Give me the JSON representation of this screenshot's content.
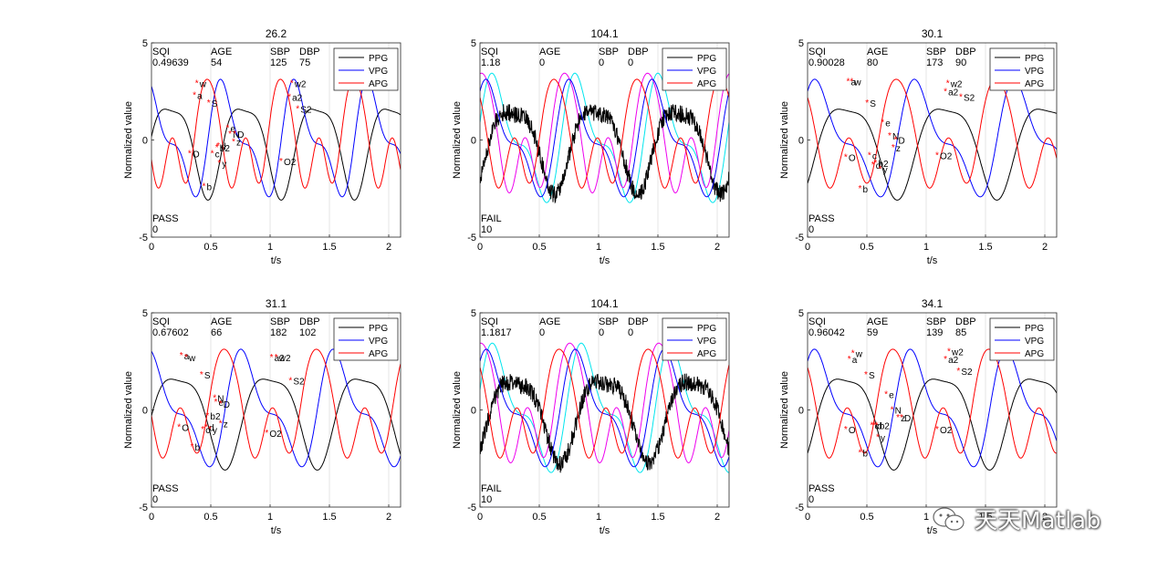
{
  "watermark": {
    "text": "天天Matlab",
    "icon": "wechat-icon"
  },
  "panel_annotation": {
    "status_lines": 2
  },
  "chart_data": [
    {
      "type": "line",
      "title": "26.2",
      "xlabel": "t/s",
      "ylabel": "Normalized value",
      "xlim": [
        0,
        2.1
      ],
      "ylim": [
        -5,
        5
      ],
      "xticks": [
        0,
        0.5,
        1,
        1.5,
        2
      ],
      "xtick_labels": [
        "0",
        "0.5",
        "1",
        "1.5",
        "2"
      ],
      "yticks": [
        -5,
        0,
        5
      ],
      "ytick_labels": [
        "-5",
        "0",
        "5"
      ],
      "info": {
        "headers": [
          "SQI",
          "AGE",
          "SBP",
          "DBP"
        ],
        "values": [
          "0.49639",
          "54",
          "125",
          "75"
        ]
      },
      "status": "PASS",
      "status_code": "0",
      "legend": [
        "PPG",
        "VPG",
        "APG"
      ],
      "legend_colors": [
        "#000000",
        "#0000ff",
        "#ff0000"
      ],
      "legend_position": "top-right",
      "noisy": false,
      "n_beats": 3.4,
      "markers": [
        {
          "label": "O",
          "x": 0.33,
          "y": -0.7
        },
        {
          "label": "w",
          "x": 0.39,
          "y": 2.9
        },
        {
          "label": "a",
          "x": 0.37,
          "y": 2.3
        },
        {
          "label": "S",
          "x": 0.49,
          "y": 1.9
        },
        {
          "label": "b",
          "x": 0.45,
          "y": -2.4
        },
        {
          "label": "c",
          "x": 0.52,
          "y": -0.7
        },
        {
          "label": "y",
          "x": 0.58,
          "y": -1.2
        },
        {
          "label": "b2",
          "x": 0.56,
          "y": -0.4
        },
        {
          "label": "d",
          "x": 0.57,
          "y": -0.3
        },
        {
          "label": "e",
          "x": 0.65,
          "y": 0.6
        },
        {
          "label": "N",
          "x": 0.67,
          "y": 0.3
        },
        {
          "label": "D",
          "x": 0.71,
          "y": 0.3
        },
        {
          "label": "z",
          "x": 0.7,
          "y": -0.1
        },
        {
          "label": "O2",
          "x": 1.1,
          "y": -1.1
        },
        {
          "label": "w2",
          "x": 1.19,
          "y": 2.9
        },
        {
          "label": "a2",
          "x": 1.17,
          "y": 2.2
        },
        {
          "label": "S2",
          "x": 1.24,
          "y": 1.6
        }
      ]
    },
    {
      "type": "line",
      "title": "104.1",
      "xlabel": "t/s",
      "ylabel": "Normalized value",
      "xlim": [
        0,
        2.1
      ],
      "ylim": [
        -5,
        5
      ],
      "xticks": [
        0,
        0.5,
        1,
        1.5,
        2
      ],
      "xtick_labels": [
        "0",
        "0.5",
        "1",
        "1.5",
        "2"
      ],
      "yticks": [
        -5,
        0,
        5
      ],
      "ytick_labels": [
        "-5",
        "0",
        "5"
      ],
      "info": {
        "headers": [
          "SQI",
          "AGE",
          "SBP",
          "DBP"
        ],
        "values": [
          "1.18",
          "0",
          "0",
          "0"
        ]
      },
      "status": "FAIL",
      "status_code": "10",
      "legend": [
        "PPG",
        "VPG",
        "APG"
      ],
      "legend_colors": [
        "#000000",
        "#0000ff",
        "#ff0000"
      ],
      "legend_position": "top-right",
      "noisy": true,
      "n_beats": 3.0,
      "markers": []
    },
    {
      "type": "line",
      "title": "30.1",
      "xlabel": "t/s",
      "ylabel": "Normalized value",
      "xlim": [
        0,
        2.1
      ],
      "ylim": [
        -5,
        5
      ],
      "xticks": [
        0,
        0.5,
        1,
        1.5,
        2
      ],
      "xtick_labels": [
        "0",
        "0.5",
        "1",
        "1.5",
        "2"
      ],
      "yticks": [
        -5,
        0,
        5
      ],
      "ytick_labels": [
        "-5",
        "0",
        "5"
      ],
      "info": {
        "headers": [
          "SQI",
          "AGE",
          "SBP",
          "DBP"
        ],
        "values": [
          "0.90028",
          "80",
          "173",
          "90"
        ]
      },
      "status": "PASS",
      "status_code": "0",
      "legend": [
        "PPG",
        "VPG",
        "APG"
      ],
      "legend_colors": [
        "#000000",
        "#0000ff",
        "#ff0000"
      ],
      "legend_position": "top-right",
      "noisy": false,
      "n_beats": 2.5,
      "markers": [
        {
          "label": "O",
          "x": 0.33,
          "y": -0.9
        },
        {
          "label": "a",
          "x": 0.35,
          "y": 3.0
        },
        {
          "label": "w",
          "x": 0.38,
          "y": 3.0
        },
        {
          "label": "S",
          "x": 0.51,
          "y": 1.9
        },
        {
          "label": "b",
          "x": 0.45,
          "y": -2.5
        },
        {
          "label": "c",
          "x": 0.53,
          "y": -0.8
        },
        {
          "label": "d",
          "x": 0.56,
          "y": -1.3
        },
        {
          "label": "b2",
          "x": 0.58,
          "y": -1.2
        },
        {
          "label": "y",
          "x": 0.62,
          "y": -1.5
        },
        {
          "label": "e",
          "x": 0.64,
          "y": 0.9
        },
        {
          "label": "N",
          "x": 0.7,
          "y": 0.2
        },
        {
          "label": "D",
          "x": 0.75,
          "y": 0.0
        },
        {
          "label": "z",
          "x": 0.73,
          "y": -0.4
        },
        {
          "label": "O2",
          "x": 1.1,
          "y": -0.8
        },
        {
          "label": "w2",
          "x": 1.19,
          "y": 2.9
        },
        {
          "label": "a2",
          "x": 1.17,
          "y": 2.5
        },
        {
          "label": "S2",
          "x": 1.3,
          "y": 2.2
        }
      ]
    },
    {
      "type": "line",
      "title": "31.1",
      "xlabel": "t/s",
      "ylabel": "Normalized value",
      "xlim": [
        0,
        2.1
      ],
      "ylim": [
        -5,
        5
      ],
      "xticks": [
        0,
        0.5,
        1,
        1.5,
        2
      ],
      "xtick_labels": [
        "0",
        "0.5",
        "1",
        "1.5",
        "2"
      ],
      "yticks": [
        -5,
        0,
        5
      ],
      "ytick_labels": [
        "-5",
        "0",
        "5"
      ],
      "info": {
        "headers": [
          "SQI",
          "AGE",
          "SBP",
          "DBP"
        ],
        "values": [
          "0.67602",
          "66",
          "182",
          "102"
        ]
      },
      "status": "PASS",
      "status_code": "0",
      "legend": [
        "PPG",
        "VPG",
        "APG"
      ],
      "legend_colors": [
        "#000000",
        "#0000ff",
        "#ff0000"
      ],
      "legend_position": "top-right",
      "noisy": false,
      "n_beats": 2.7,
      "markers": [
        {
          "label": "O",
          "x": 0.24,
          "y": -0.9
        },
        {
          "label": "a",
          "x": 0.26,
          "y": 2.8
        },
        {
          "label": "w",
          "x": 0.3,
          "y": 2.7
        },
        {
          "label": "S",
          "x": 0.43,
          "y": 1.8
        },
        {
          "label": "b",
          "x": 0.35,
          "y": -1.9
        },
        {
          "label": "c",
          "x": 0.44,
          "y": -1.0
        },
        {
          "label": "d",
          "x": 0.47,
          "y": -0.9
        },
        {
          "label": "y",
          "x": 0.5,
          "y": -1.0
        },
        {
          "label": "b2",
          "x": 0.48,
          "y": -0.3
        },
        {
          "label": "N",
          "x": 0.54,
          "y": 0.6
        },
        {
          "label": "e",
          "x": 0.55,
          "y": 0.4
        },
        {
          "label": "D",
          "x": 0.59,
          "y": 0.3
        },
        {
          "label": "z",
          "x": 0.59,
          "y": -0.7
        },
        {
          "label": "O2",
          "x": 0.98,
          "y": -1.2
        },
        {
          "label": "a2",
          "x": 1.02,
          "y": 2.7
        },
        {
          "label": "w2",
          "x": 1.06,
          "y": 2.7
        },
        {
          "label": "S2",
          "x": 1.18,
          "y": 1.5
        }
      ]
    },
    {
      "type": "line",
      "title": "104.1",
      "xlabel": "t/s",
      "ylabel": "Normalized value",
      "xlim": [
        0,
        2.1
      ],
      "ylim": [
        -5,
        5
      ],
      "xticks": [
        0,
        0.5,
        1,
        1.5,
        2
      ],
      "xtick_labels": [
        "0",
        "0.5",
        "1",
        "1.5",
        "2"
      ],
      "yticks": [
        -5,
        0,
        5
      ],
      "ytick_labels": [
        "-5",
        "0",
        "5"
      ],
      "info": {
        "headers": [
          "SQI",
          "AGE",
          "SBP",
          "DBP"
        ],
        "values": [
          "1.1817",
          "0",
          "0",
          "0"
        ]
      },
      "status": "FAIL",
      "status_code": "10",
      "legend": [
        "PPG",
        "VPG",
        "APG"
      ],
      "legend_colors": [
        "#000000",
        "#0000ff",
        "#ff0000"
      ],
      "legend_position": "top-right",
      "noisy": true,
      "n_beats": 2.8,
      "markers": []
    },
    {
      "type": "line",
      "title": "34.1",
      "xlabel": "t/s",
      "ylabel": "Normalized value",
      "xlim": [
        0,
        2.1
      ],
      "ylim": [
        -5,
        5
      ],
      "xticks": [
        0,
        0.5,
        1,
        1.5,
        2
      ],
      "xtick_labels": [
        "0",
        "0.5",
        "1",
        "1.5",
        "2"
      ],
      "yticks": [
        -5,
        0,
        5
      ],
      "ytick_labels": [
        "-5",
        "0",
        "5"
      ],
      "info": {
        "headers": [
          "SQI",
          "AGE",
          "SBP",
          "DBP"
        ],
        "values": [
          "0.96042",
          "59",
          "139",
          "85"
        ]
      },
      "status": "PASS",
      "status_code": "0",
      "legend": [
        "PPG",
        "VPG",
        "APG"
      ],
      "legend_colors": [
        "#000000",
        "#0000ff",
        "#ff0000"
      ],
      "legend_position": "top-right",
      "noisy": false,
      "n_beats": 2.6,
      "markers": [
        {
          "label": "O",
          "x": 0.33,
          "y": -1.0
        },
        {
          "label": "a",
          "x": 0.36,
          "y": 2.6
        },
        {
          "label": "w",
          "x": 0.39,
          "y": 2.9
        },
        {
          "label": "S",
          "x": 0.5,
          "y": 1.8
        },
        {
          "label": "b",
          "x": 0.45,
          "y": -2.2
        },
        {
          "label": "c",
          "x": 0.55,
          "y": -0.8
        },
        {
          "label": "d",
          "x": 0.57,
          "y": -0.8
        },
        {
          "label": "b2",
          "x": 0.59,
          "y": -0.8
        },
        {
          "label": "y",
          "x": 0.6,
          "y": -1.4
        },
        {
          "label": "e",
          "x": 0.67,
          "y": 0.8
        },
        {
          "label": "N",
          "x": 0.72,
          "y": 0.0
        },
        {
          "label": "z",
          "x": 0.77,
          "y": -0.4
        },
        {
          "label": "D",
          "x": 0.8,
          "y": -0.4
        },
        {
          "label": "O2",
          "x": 1.1,
          "y": -1.0
        },
        {
          "label": "a2",
          "x": 1.17,
          "y": 2.6
        },
        {
          "label": "w2",
          "x": 1.2,
          "y": 3.0
        },
        {
          "label": "S2",
          "x": 1.28,
          "y": 2.0
        }
      ]
    }
  ]
}
